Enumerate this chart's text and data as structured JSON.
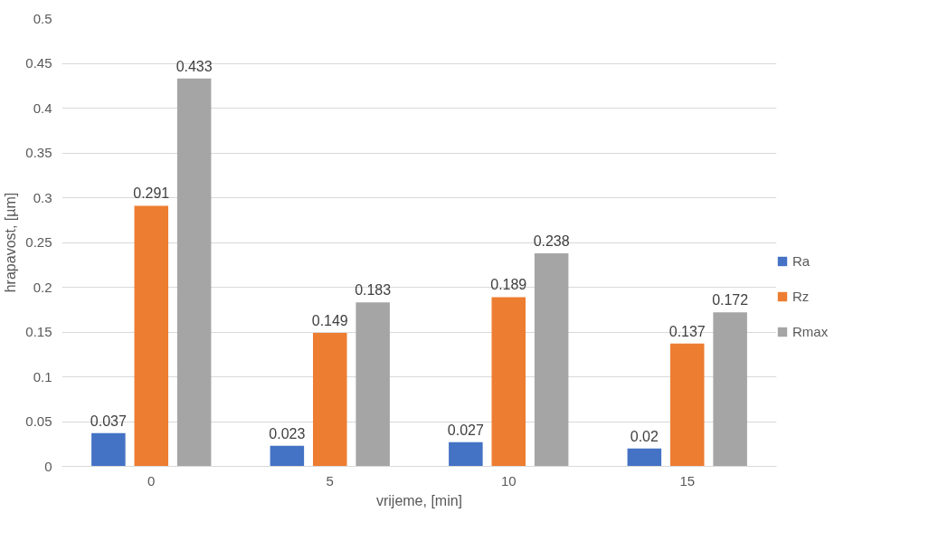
{
  "chart_data": {
    "type": "bar",
    "xlabel": "vrijeme, [min]",
    "ylabel": "hrapavost, [µm]",
    "categories": [
      "0",
      "5",
      "10",
      "15"
    ],
    "series": [
      {
        "name": "Ra",
        "color": "#4472c4",
        "values": [
          0.037,
          0.023,
          0.027,
          0.02
        ]
      },
      {
        "name": "Rz",
        "color": "#ed7d31",
        "values": [
          0.291,
          0.149,
          0.189,
          0.137
        ]
      },
      {
        "name": "Rmax",
        "color": "#a5a5a5",
        "values": [
          0.433,
          0.183,
          0.238,
          0.172
        ]
      }
    ],
    "ylim": [
      0,
      0.5
    ],
    "yticks": [
      0,
      0.05,
      0.1,
      0.15,
      0.2,
      0.25,
      0.3,
      0.35,
      0.4,
      0.45,
      0.5
    ],
    "grid": "y",
    "legend": "right",
    "data_labels": true
  }
}
